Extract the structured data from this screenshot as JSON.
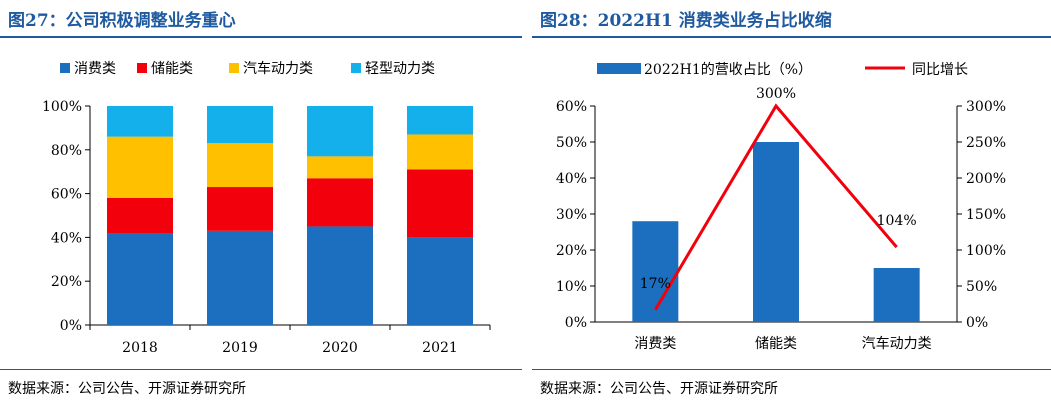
{
  "charts": [
    {
      "figure_title": "图27：公司积极调整业务重心",
      "source": "数据来源：公司公告、开源证券研究所"
    },
    {
      "figure_title": "图28：2022H1 消费类业务占比收缩",
      "source": "数据来源：公司公告、开源证券研究所"
    }
  ],
  "chart_data": [
    {
      "type": "bar",
      "stacked": true,
      "categories": [
        "2018",
        "2019",
        "2020",
        "2021"
      ],
      "series": [
        {
          "name": "消费类",
          "color": "#1c6fbf",
          "values": [
            42,
            43,
            45,
            40
          ]
        },
        {
          "name": "储能类",
          "color": "#f2000c",
          "values": [
            16,
            20,
            22,
            31
          ]
        },
        {
          "name": "汽车动力类",
          "color": "#ffc000",
          "values": [
            28,
            20,
            10,
            16
          ]
        },
        {
          "name": "轻型动力类",
          "color": "#13b0ec",
          "values": [
            14,
            17,
            23,
            13
          ]
        }
      ],
      "yticks": [
        "0%",
        "20%",
        "40%",
        "60%",
        "80%",
        "100%"
      ],
      "ylim": [
        0,
        100
      ],
      "legend_position": "top",
      "grid": false
    },
    {
      "type": "bar+line",
      "categories": [
        "消费类",
        "储能类",
        "汽车动力类"
      ],
      "series": [
        {
          "name": "2022H1的营收占比（%）",
          "kind": "bar",
          "axis": "left",
          "color": "#1c6fbf",
          "values": [
            28,
            50,
            15
          ]
        },
        {
          "name": "同比增长",
          "kind": "line",
          "axis": "right",
          "color": "#f2000c",
          "values": [
            17,
            300,
            104
          ]
        }
      ],
      "line_labels": [
        "17%",
        "300%",
        "104%"
      ],
      "yticks_left": [
        "0%",
        "10%",
        "20%",
        "30%",
        "40%",
        "50%",
        "60%"
      ],
      "ylim_left": [
        0,
        60
      ],
      "yticks_right": [
        "0%",
        "50%",
        "100%",
        "150%",
        "200%",
        "250%",
        "300%"
      ],
      "ylim_right": [
        0,
        300
      ],
      "legend_position": "top",
      "grid": false
    }
  ]
}
